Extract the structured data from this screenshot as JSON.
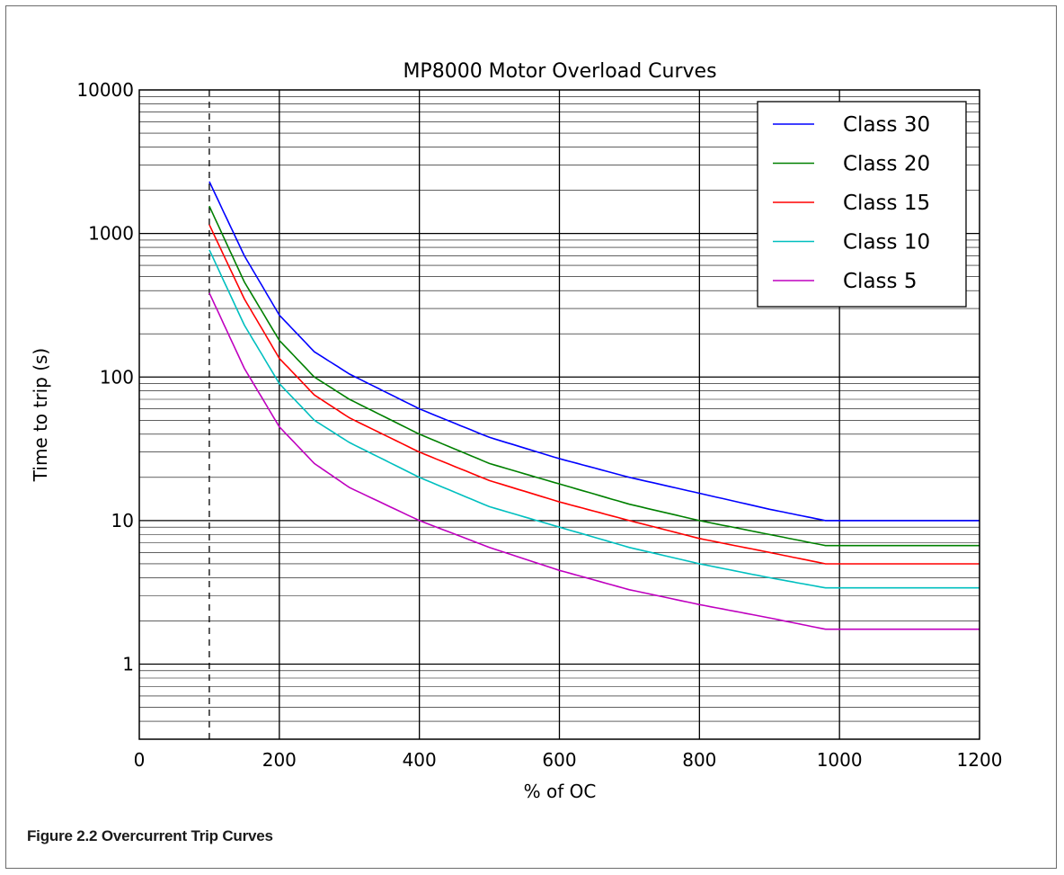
{
  "caption": "Figure 2.2 Overcurrent Trip Curves",
  "chart_data": {
    "type": "line",
    "title": "MP8000 Motor Overload Curves",
    "xlabel": "% of OC",
    "ylabel": "Time to trip (s)",
    "xlim": [
      0,
      1200
    ],
    "ylim": [
      0.3,
      10000
    ],
    "yscale": "log",
    "grid": true,
    "xticks": [
      "0",
      "200",
      "400",
      "600",
      "800",
      "1000",
      "1200"
    ],
    "yticks": [
      "1",
      "10",
      "100",
      "1000",
      "10000"
    ],
    "legend_position": "top-right",
    "reference_line": {
      "x": 100,
      "style": "dashed"
    },
    "series": [
      {
        "name": "Class 30",
        "color": "#0000ff",
        "x": [
          100,
          150,
          200,
          250,
          300,
          400,
          500,
          600,
          700,
          800,
          900,
          980,
          1000,
          1100,
          1200
        ],
        "y": [
          2300,
          700,
          270,
          150,
          105,
          60,
          38,
          27,
          20,
          15.5,
          12,
          10,
          10,
          10,
          10
        ]
      },
      {
        "name": "Class 20",
        "color": "#008000",
        "x": [
          100,
          150,
          200,
          250,
          300,
          400,
          500,
          600,
          700,
          800,
          900,
          980,
          1000,
          1100,
          1200
        ],
        "y": [
          1550,
          460,
          180,
          100,
          70,
          40,
          25,
          18,
          13,
          10,
          8,
          6.7,
          6.7,
          6.7,
          6.7
        ]
      },
      {
        "name": "Class 15",
        "color": "#ff0000",
        "x": [
          100,
          150,
          200,
          250,
          300,
          400,
          500,
          600,
          700,
          800,
          900,
          980,
          1000,
          1100,
          1200
        ],
        "y": [
          1150,
          350,
          135,
          75,
          52,
          30,
          19,
          13.5,
          10,
          7.5,
          6,
          5,
          5,
          5,
          5
        ]
      },
      {
        "name": "Class 10",
        "color": "#00bfbf",
        "x": [
          100,
          150,
          200,
          250,
          300,
          400,
          500,
          600,
          700,
          800,
          900,
          980,
          1000,
          1100,
          1200
        ],
        "y": [
          770,
          230,
          90,
          50,
          35,
          20,
          12.5,
          9,
          6.5,
          5,
          4,
          3.4,
          3.4,
          3.4,
          3.4
        ]
      },
      {
        "name": "Class 5",
        "color": "#bf00bf",
        "x": [
          100,
          150,
          200,
          250,
          300,
          400,
          500,
          600,
          700,
          800,
          900,
          980,
          1000,
          1100,
          1200
        ],
        "y": [
          385,
          115,
          45,
          25,
          17,
          10,
          6.5,
          4.5,
          3.3,
          2.6,
          2.1,
          1.75,
          1.75,
          1.75,
          1.75
        ]
      }
    ]
  }
}
